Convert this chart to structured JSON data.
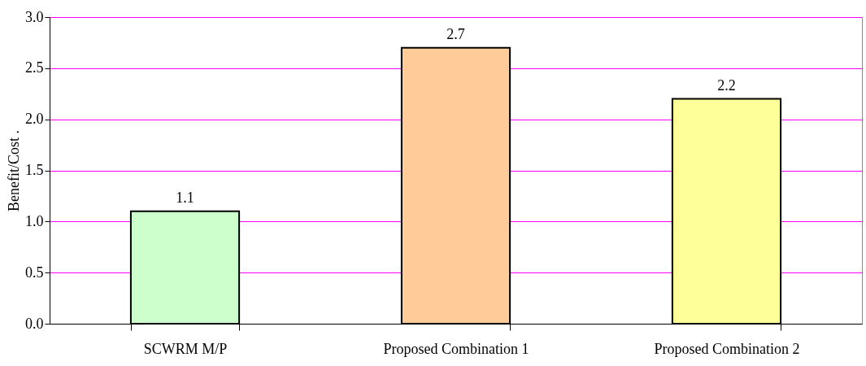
{
  "chart_data": {
    "type": "bar",
    "ylabel": "Benefit/Cost .",
    "categories": [
      "SCWRM M/P",
      "Proposed Combination 1",
      "Proposed Combination 2"
    ],
    "values": [
      1.1,
      2.7,
      2.2
    ],
    "colors": [
      "#ccffcc",
      "#ffcc99",
      "#ffff99"
    ],
    "ylim": [
      0,
      3
    ],
    "yticks": [
      {
        "value": 0,
        "label": "0.0"
      },
      0.5,
      {
        "value": 1,
        "label": "1.0"
      },
      1.5,
      {
        "value": 2,
        "label": "2.0"
      },
      2.5,
      {
        "value": 3,
        "label": "3.0"
      }
    ],
    "grid": "y",
    "data_labels": true
  }
}
